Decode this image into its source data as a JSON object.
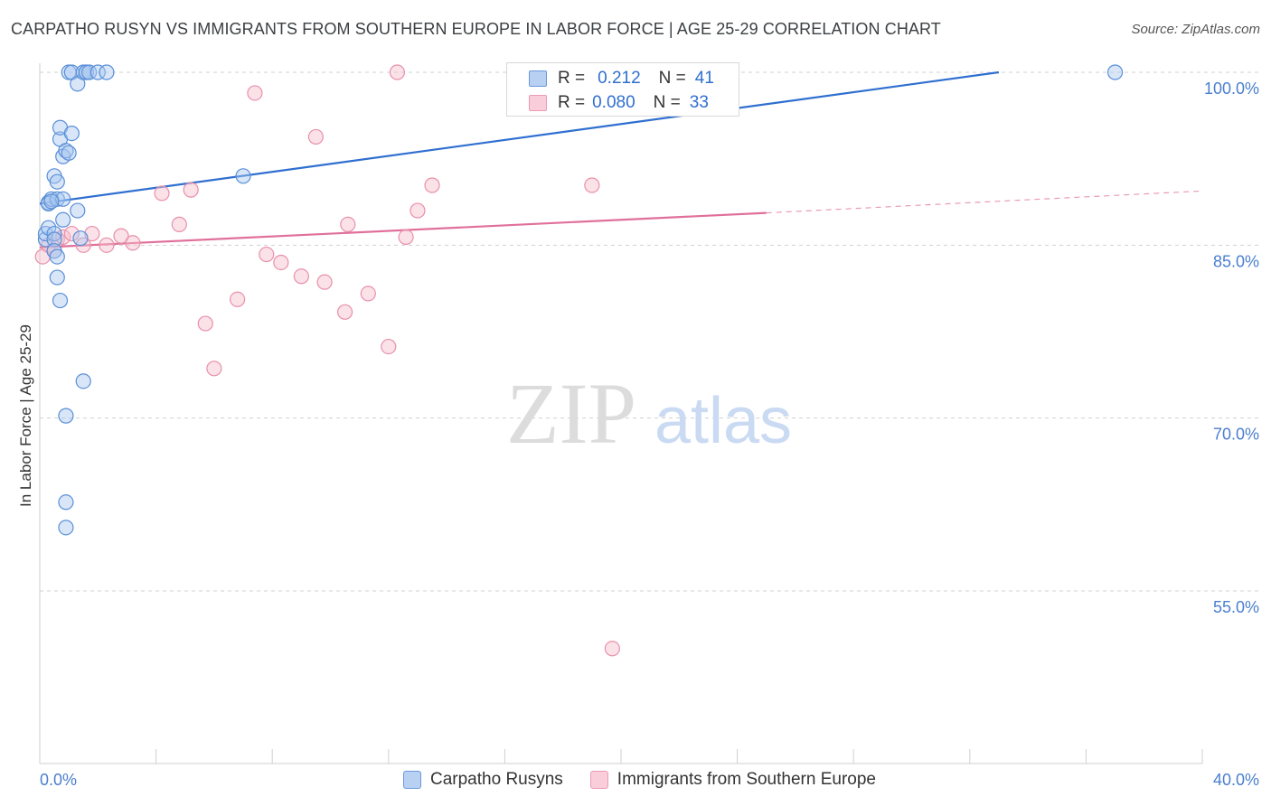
{
  "header": {
    "title": "CARPATHO RUSYN VS IMMIGRANTS FROM SOUTHERN EUROPE IN LABOR FORCE | AGE 25-29 CORRELATION CHART",
    "source": "Source: ZipAtlas.com"
  },
  "legend": {
    "r_label": "R =",
    "n_label": "N =",
    "blue": {
      "r": "0.212",
      "n": "41"
    },
    "pink": {
      "r": "0.080",
      "n": "33"
    }
  },
  "colors": {
    "blue_fill": "#a9c8f0",
    "blue_stroke": "#5a8fd8",
    "blue_line": "#2f6fd0",
    "pink_fill": "#f6bccd",
    "pink_stroke": "#e890aa",
    "pink_line": "#e0709a",
    "tick_text": "#4a7fcf",
    "grid": "#d0d0d0"
  },
  "watermark": {
    "zip": "ZIP",
    "atlas": "atlas"
  },
  "chart_data": {
    "type": "scatter",
    "title": "CARPATHO RUSYN VS IMMIGRANTS FROM SOUTHERN EUROPE IN LABOR FORCE | AGE 25-29 CORRELATION CHART",
    "xlabel": "",
    "ylabel": "In Labor Force | Age 25-29",
    "xlim": [
      0,
      40
    ],
    "ylim": [
      40,
      101.5
    ],
    "x_tick_labels": [
      "0.0%",
      "40.0%"
    ],
    "y_ticks": [
      55,
      70,
      85,
      100
    ],
    "y_tick_labels": [
      "55.0%",
      "70.0%",
      "85.0%",
      "100.0%"
    ],
    "grid": true,
    "series": [
      {
        "name": "Carpatho Rusyns",
        "r": 0.212,
        "n": 41,
        "trend": {
          "x0": 0,
          "y0": 88.6,
          "x1": 33.0,
          "y1": 100.0,
          "dashed_to": null
        },
        "points": [
          [
            0.2,
            85.5
          ],
          [
            0.2,
            86.0
          ],
          [
            0.3,
            88.7
          ],
          [
            0.3,
            86.5
          ],
          [
            0.3,
            88.6
          ],
          [
            0.4,
            89.0
          ],
          [
            0.5,
            86.0
          ],
          [
            0.5,
            91.0
          ],
          [
            0.5,
            85.5
          ],
          [
            0.6,
            89.0
          ],
          [
            0.5,
            84.5
          ],
          [
            0.6,
            84.0
          ],
          [
            0.6,
            90.5
          ],
          [
            0.7,
            94.2
          ],
          [
            0.6,
            82.2
          ],
          [
            0.7,
            95.2
          ],
          [
            0.7,
            80.2
          ],
          [
            0.8,
            92.7
          ],
          [
            0.8,
            89.0
          ],
          [
            0.8,
            87.2
          ],
          [
            0.9,
            93.2
          ],
          [
            0.9,
            70.2
          ],
          [
            0.9,
            62.7
          ],
          [
            0.9,
            60.5
          ],
          [
            1.0,
            93.0
          ],
          [
            1.0,
            100.0
          ],
          [
            1.1,
            100.0
          ],
          [
            1.1,
            94.7
          ],
          [
            1.3,
            99.0
          ],
          [
            1.3,
            88.0
          ],
          [
            1.4,
            85.6
          ],
          [
            1.5,
            100.0
          ],
          [
            1.5,
            73.2
          ],
          [
            1.6,
            100.0
          ],
          [
            1.6,
            100.0
          ],
          [
            1.7,
            100.0
          ],
          [
            2.0,
            100.0
          ],
          [
            2.3,
            100.0
          ],
          [
            7.0,
            91.0
          ],
          [
            37.0,
            100.0
          ],
          [
            0.4,
            88.8
          ]
        ]
      },
      {
        "name": "Immigrants from Southern Europe",
        "r": 0.08,
        "n": 33,
        "trend": {
          "x0": 0,
          "y0": 84.8,
          "x1": 25.0,
          "y1": 87.8,
          "dashed_to": [
            40,
            89.7
          ]
        },
        "points": [
          [
            0.1,
            84.0
          ],
          [
            0.3,
            85.0
          ],
          [
            0.5,
            84.5
          ],
          [
            0.6,
            85.5
          ],
          [
            0.8,
            85.7
          ],
          [
            1.1,
            86.0
          ],
          [
            1.5,
            85.0
          ],
          [
            1.8,
            86.0
          ],
          [
            2.3,
            85.0
          ],
          [
            2.8,
            85.8
          ],
          [
            3.2,
            85.2
          ],
          [
            4.2,
            89.5
          ],
          [
            4.8,
            86.8
          ],
          [
            5.2,
            89.8
          ],
          [
            5.7,
            78.2
          ],
          [
            6.0,
            74.3
          ],
          [
            6.8,
            80.3
          ],
          [
            7.4,
            98.2
          ],
          [
            7.8,
            84.2
          ],
          [
            8.3,
            83.5
          ],
          [
            9.0,
            82.3
          ],
          [
            9.5,
            94.4
          ],
          [
            9.8,
            81.8
          ],
          [
            10.5,
            79.2
          ],
          [
            10.6,
            86.8
          ],
          [
            11.3,
            80.8
          ],
          [
            12.0,
            76.2
          ],
          [
            12.3,
            100.0
          ],
          [
            12.6,
            85.7
          ],
          [
            13.0,
            88.0
          ],
          [
            13.5,
            90.2
          ],
          [
            19.0,
            90.2
          ],
          [
            19.7,
            50.0
          ]
        ]
      }
    ]
  },
  "bottom_legend": {
    "blue_label": "Carpatho Rusyns",
    "pink_label": "Immigrants from Southern Europe"
  }
}
